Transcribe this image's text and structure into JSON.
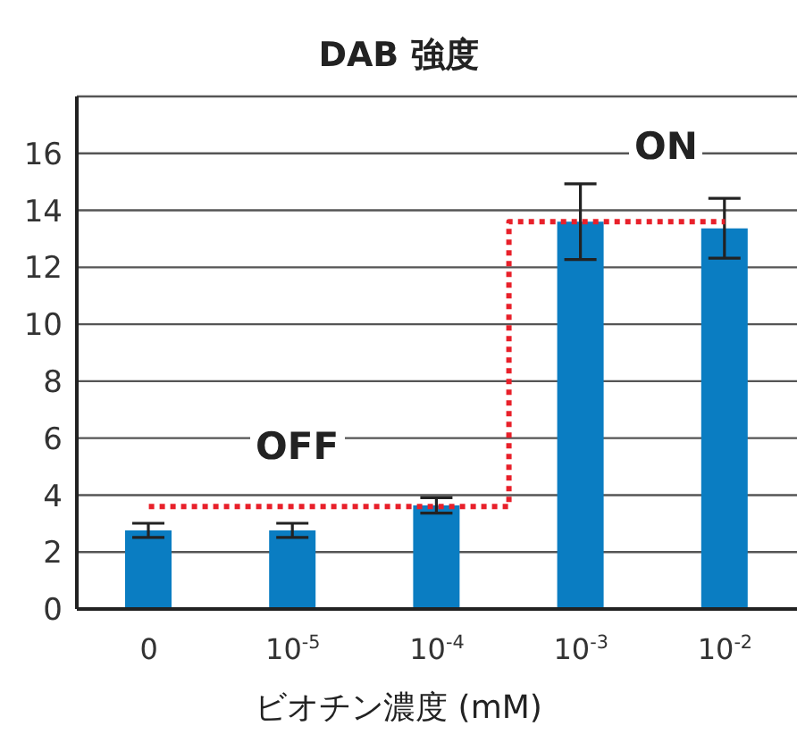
{
  "chart_data": {
    "type": "bar",
    "title": "DAB 強度",
    "xlabel": "ビオチン濃度 (mM)",
    "categories": [
      "0",
      "10$^{-5}$",
      "10$^{-4}$",
      "10$^{-3}$",
      "10$^{-2}$"
    ],
    "series": [
      {
        "color": "#0a7dc2",
        "values": [
          2.76,
          2.76,
          3.64,
          13.6,
          13.37
        ],
        "errors": [
          0.25,
          0.25,
          0.27,
          1.33,
          1.05
        ]
      },
      {
        "type": "step",
        "color": "#e8202a",
        "line_style": "dotted",
        "values": [
          3.6,
          3.6,
          3.6,
          13.6,
          13.6
        ]
      }
    ],
    "annotations": [
      "OFF",
      "ON"
    ],
    "ylim": [
      0,
      18
    ],
    "yticks": [
      0,
      2,
      4,
      6,
      8,
      10,
      12,
      14,
      16
    ],
    "grid": "y",
    "legend": false
  }
}
